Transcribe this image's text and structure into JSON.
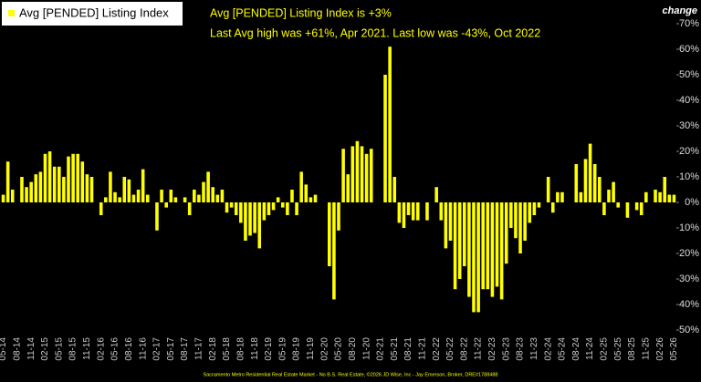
{
  "chart_data": {
    "type": "bar",
    "legend": "Avg [PENDED] Listing Index",
    "annotations": [
      "Avg [PENDED] Listing Index is +3%",
      "Last Avg high was +61%, Apr 2021. Last low was -43%, Oct 2022"
    ],
    "y_label": "change",
    "footer": "Sacramento Metro Residential Real Estate Market - No B.S. Real Estate, ©2026 JD Wise, Inc - Jay Emerson, Broker, DRE#1788488",
    "color": "#ffff00",
    "categories": [
      "05-14",
      null,
      null,
      "08-14",
      null,
      null,
      "11-14",
      null,
      null,
      "02-15",
      null,
      null,
      "05-15",
      null,
      null,
      "08-15",
      null,
      null,
      "11-15",
      null,
      null,
      "02-16",
      null,
      null,
      "05-16",
      null,
      null,
      "08-16",
      null,
      null,
      "11-16",
      null,
      null,
      "02-17",
      null,
      null,
      "05-17",
      null,
      null,
      "08-17",
      null,
      null,
      "11-17",
      null,
      null,
      "02-18",
      null,
      null,
      "05-18",
      null,
      null,
      "08-18",
      null,
      null,
      "11-18",
      null,
      null,
      "02-19",
      null,
      null,
      "05-19",
      null,
      null,
      "08-19",
      null,
      null,
      "11-19",
      null,
      null,
      "02-20",
      null,
      null,
      "05-20",
      null,
      null,
      "08-20",
      null,
      null,
      "11-20",
      null,
      null,
      "02-21",
      null,
      null,
      "05-21",
      null,
      null,
      "08-21",
      null,
      null,
      "11-21",
      null,
      null,
      "02-22",
      null,
      null,
      "05-22",
      null,
      null,
      "08-22",
      null,
      null,
      "11-22",
      null,
      null,
      "02-23",
      null,
      null,
      "05-23",
      null,
      null,
      "08-23",
      null,
      null,
      "11-23",
      null,
      null,
      "02-24",
      null,
      null,
      "05-24",
      null,
      null,
      "08-24",
      null,
      null,
      "11-24",
      null,
      null,
      "02-25",
      null,
      null,
      "05-25",
      null,
      null,
      "08-25",
      null,
      null,
      "11-25",
      null,
      null,
      "02-26",
      null,
      null,
      "05-26"
    ],
    "values": [
      3,
      16,
      5,
      0,
      10,
      6,
      8,
      11,
      12,
      19,
      20,
      14,
      14,
      10,
      18,
      19,
      19,
      16,
      11,
      10,
      0,
      -5,
      2,
      12,
      4,
      2,
      10,
      9,
      3,
      5,
      13,
      3,
      0,
      -11,
      5,
      -2,
      5,
      2,
      0,
      2,
      -5,
      5,
      3,
      8,
      12,
      6,
      3,
      5,
      -4,
      -2,
      -5,
      -8,
      -15,
      -13,
      -12,
      -18,
      -7,
      -5,
      -3,
      2,
      -2,
      -5,
      5,
      -5,
      12,
      7,
      2,
      3,
      0,
      0,
      -25,
      -38,
      -11,
      21,
      11,
      22,
      24,
      22,
      19,
      21,
      0,
      0,
      50,
      61,
      10,
      -8,
      -10,
      -5,
      -7,
      -7,
      0,
      -7,
      0,
      6,
      -7,
      -18,
      -15,
      -34,
      -30,
      -25,
      -37,
      -43,
      -43,
      -34,
      -34,
      -37,
      -33,
      -38,
      -24,
      -10,
      -14,
      -20,
      -15,
      -8,
      -5,
      -2,
      0,
      10,
      -4,
      4,
      4,
      0,
      0,
      15,
      4,
      17,
      23,
      15,
      10,
      -5,
      5,
      8,
      -2,
      0,
      -6,
      0,
      -3,
      -5,
      4,
      0,
      5,
      4,
      10,
      3,
      3
    ],
    "ylim": [
      -50,
      70
    ],
    "yticks": [
      {
        "value": -50,
        "label": "-50%"
      },
      {
        "value": -40,
        "label": "-40%"
      },
      {
        "value": -30,
        "label": "-30%"
      },
      {
        "value": -20,
        "label": "-20%"
      },
      {
        "value": -10,
        "label": "-10%"
      },
      {
        "value": 0,
        "label": "0%"
      },
      {
        "value": 10,
        "label": "10%"
      },
      {
        "value": 20,
        "label": "20%"
      },
      {
        "value": 30,
        "label": "30%"
      },
      {
        "value": 40,
        "label": "40%"
      },
      {
        "value": 50,
        "label": "50%"
      },
      {
        "value": 60,
        "label": "60%"
      },
      {
        "value": 70,
        "label": "70%"
      }
    ]
  }
}
